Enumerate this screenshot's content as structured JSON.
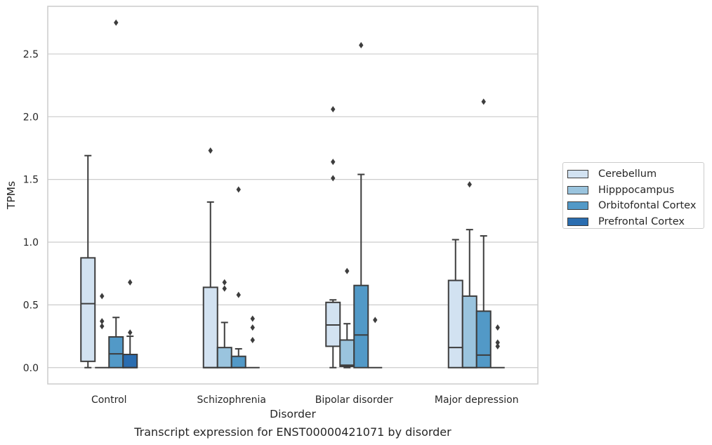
{
  "chart_data": {
    "type": "box",
    "xlabel": "Disorder",
    "ylabel": "TPMs",
    "ylim": [
      -0.13,
      2.88
    ],
    "yticks": [
      "0.0",
      "0.5",
      "1.0",
      "1.5",
      "2.0",
      "2.5"
    ],
    "grid": true,
    "legend_placement": "outside-right",
    "categories": [
      "Control",
      "Schizophrenia",
      "Bipolar disorder",
      "Major depression"
    ],
    "series": [
      {
        "name": "Cerebellum",
        "color": "#d2e2f1",
        "boxes": [
          {
            "min": 0.0,
            "q1": 0.05,
            "median": 0.51,
            "q3": 0.875,
            "max": 1.69,
            "outliers": []
          },
          {
            "min": 0.0,
            "q1": 0.0,
            "median": 0.0,
            "q3": 0.64,
            "max": 1.32,
            "outliers": [
              1.73
            ]
          },
          {
            "min": 0.0,
            "q1": 0.17,
            "median": 0.34,
            "q3": 0.52,
            "max": 0.54,
            "outliers": [
              1.51,
              1.64,
              2.06
            ]
          },
          {
            "min": 0.0,
            "q1": 0.0,
            "median": 0.16,
            "q3": 0.695,
            "max": 1.02,
            "outliers": []
          }
        ]
      },
      {
        "name": "Hipppocampus",
        "color": "#9ac4de",
        "boxes": [
          {
            "min": 0.0,
            "q1": 0.0,
            "median": 0.0,
            "q3": 0.0,
            "max": 0.0,
            "outliers": [
              0.33,
              0.37,
              0.57
            ]
          },
          {
            "min": 0.0,
            "q1": 0.0,
            "median": 0.0,
            "q3": 0.16,
            "max": 0.36,
            "outliers": [
              0.63,
              0.68
            ]
          },
          {
            "min": 0.0,
            "q1": 0.01,
            "median": 0.02,
            "q3": 0.22,
            "max": 0.35,
            "outliers": [
              0.77
            ]
          },
          {
            "min": 0.0,
            "q1": 0.0,
            "median": 0.0,
            "q3": 0.57,
            "max": 1.1,
            "outliers": [
              1.46
            ]
          }
        ]
      },
      {
        "name": "Orbitofontal Cortex",
        "color": "#5299c7",
        "boxes": [
          {
            "min": 0.0,
            "q1": 0.0,
            "median": 0.11,
            "q3": 0.245,
            "max": 0.4,
            "outliers": [
              2.75
            ]
          },
          {
            "min": 0.0,
            "q1": 0.0,
            "median": 0.0,
            "q3": 0.09,
            "max": 0.15,
            "outliers": [
              0.58,
              1.42
            ]
          },
          {
            "min": 0.0,
            "q1": 0.0,
            "median": 0.26,
            "q3": 0.655,
            "max": 1.54,
            "outliers": [
              2.57
            ]
          },
          {
            "min": 0.0,
            "q1": 0.0,
            "median": 0.1,
            "q3": 0.45,
            "max": 1.05,
            "outliers": [
              2.12
            ]
          }
        ]
      },
      {
        "name": "Prefrontal Cortex",
        "color": "#2a6db0",
        "boxes": [
          {
            "min": 0.0,
            "q1": 0.0,
            "median": 0.0,
            "q3": 0.105,
            "max": 0.25,
            "outliers": [
              0.28,
              0.68
            ]
          },
          {
            "min": 0.0,
            "q1": 0.0,
            "median": 0.0,
            "q3": 0.0,
            "max": 0.0,
            "outliers": [
              0.22,
              0.32,
              0.39
            ]
          },
          {
            "min": 0.0,
            "q1": 0.0,
            "median": 0.0,
            "q3": 0.0,
            "max": 0.0,
            "outliers": [
              0.38
            ]
          },
          {
            "min": 0.0,
            "q1": 0.0,
            "median": 0.0,
            "q3": 0.0,
            "max": 0.0,
            "outliers": [
              0.17,
              0.2,
              0.32
            ]
          }
        ]
      }
    ]
  },
  "caption": "Transcript expression for ENST00000421071 by disorder"
}
